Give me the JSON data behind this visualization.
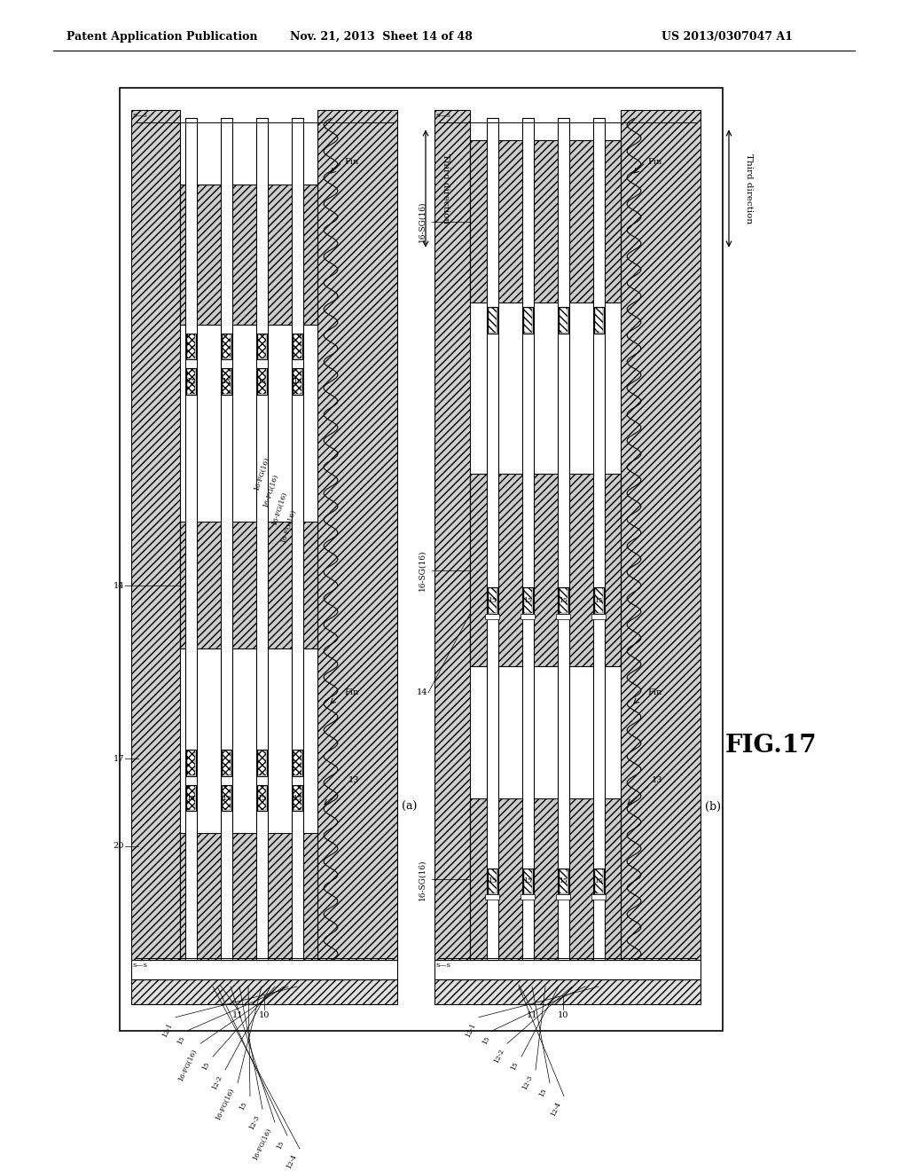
{
  "header_left": "Patent Application Publication",
  "header_center": "Nov. 21, 2013  Sheet 14 of 48",
  "header_right": "US 2013/0307047 A1",
  "background_color": "#ffffff",
  "fig_label": "FIG.17",
  "sub_a": "(a)",
  "sub_b": "(b)",
  "third_direction": "Third direction"
}
